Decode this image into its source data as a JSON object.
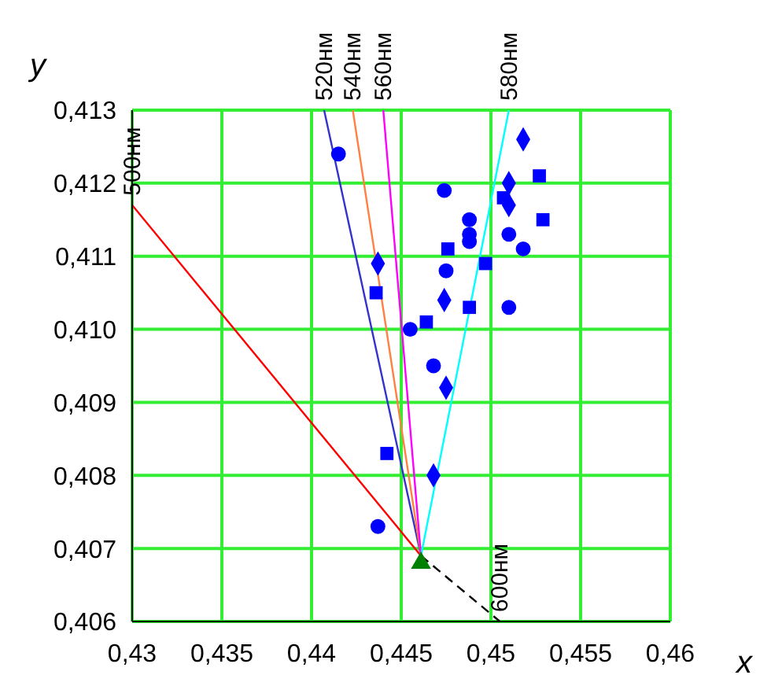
{
  "chart_data": {
    "type": "scatter",
    "xlabel": "x",
    "ylabel": "y",
    "xlim": [
      0.43,
      0.46
    ],
    "ylim": [
      0.406,
      0.413
    ],
    "xticks": [
      {
        "value": 0.43,
        "label": "0,43"
      },
      {
        "value": 0.435,
        "label": "0,435"
      },
      {
        "value": 0.44,
        "label": "0,44"
      },
      {
        "value": 0.445,
        "label": "0,445"
      },
      {
        "value": 0.45,
        "label": "0,45"
      },
      {
        "value": 0.455,
        "label": "0,455"
      },
      {
        "value": 0.46,
        "label": "0,46"
      }
    ],
    "yticks": [
      {
        "value": 0.406,
        "label": "0,406"
      },
      {
        "value": 0.407,
        "label": "0,407"
      },
      {
        "value": 0.408,
        "label": "0,408"
      },
      {
        "value": 0.409,
        "label": "0,409"
      },
      {
        "value": 0.41,
        "label": "0,410"
      },
      {
        "value": 0.411,
        "label": "0,411"
      },
      {
        "value": 0.412,
        "label": "0,412"
      },
      {
        "value": 0.413,
        "label": "0,413"
      }
    ],
    "grid": true,
    "series": [
      {
        "type": "line",
        "name": "500нм",
        "color": "#ff0000",
        "marker": "none",
        "line_style": "solid",
        "x": [
          0.4461,
          0.43
        ],
        "values": [
          0.4069,
          0.4117
        ]
      },
      {
        "type": "line",
        "name": "520нм",
        "color": "#3333cc",
        "marker": "none",
        "line_style": "solid",
        "x": [
          0.4461,
          0.4407
        ],
        "values": [
          0.4069,
          0.413
        ]
      },
      {
        "type": "line",
        "name": "540нм",
        "color": "#ff8040",
        "marker": "none",
        "line_style": "solid",
        "x": [
          0.4461,
          0.4423
        ],
        "values": [
          0.4069,
          0.413
        ]
      },
      {
        "type": "line",
        "name": "560нм",
        "color": "#ff00ff",
        "marker": "none",
        "line_style": "solid",
        "x": [
          0.4461,
          0.444
        ],
        "values": [
          0.4069,
          0.413
        ]
      },
      {
        "type": "line",
        "name": "580нм",
        "color": "#00ffff",
        "marker": "none",
        "line_style": "solid",
        "x": [
          0.4461,
          0.451
        ],
        "values": [
          0.4069,
          0.413
        ]
      },
      {
        "type": "line",
        "name": "600нм",
        "color": "#000000",
        "marker": "none",
        "line_style": "dashed",
        "x": [
          0.4461,
          0.4505
        ],
        "values": [
          0.4069,
          0.406
        ]
      },
      {
        "color": "#0000ff",
        "marker": "circle",
        "x": [
          0.4415,
          0.4474,
          0.4475,
          0.4468,
          0.451,
          0.4518,
          0.451,
          0.4455,
          0.4488,
          0.4488,
          0.4488,
          0.4437
        ],
        "values": [
          0.4124,
          0.4119,
          0.4108,
          0.4095,
          0.4113,
          0.4111,
          0.4103,
          0.41,
          0.4115,
          0.4113,
          0.4112,
          0.4073
        ]
      },
      {
        "color": "#0000ff",
        "marker": "square",
        "x": [
          0.4527,
          0.4529,
          0.4507,
          0.4476,
          0.4497,
          0.4436,
          0.4488,
          0.4464,
          0.4442
        ],
        "values": [
          0.4121,
          0.4115,
          0.4118,
          0.4111,
          0.4109,
          0.4105,
          0.4103,
          0.4101,
          0.4083
        ]
      },
      {
        "color": "#0000ff",
        "marker": "diamond",
        "x": [
          0.4518,
          0.451,
          0.451,
          0.4437,
          0.4474,
          0.4475,
          0.4468
        ],
        "values": [
          0.4126,
          0.412,
          0.4117,
          0.4109,
          0.4104,
          0.4092,
          0.408
        ]
      },
      {
        "color": "#008000",
        "marker": "triangle",
        "x": [
          0.4461
        ],
        "values": [
          0.4068
        ]
      }
    ]
  }
}
